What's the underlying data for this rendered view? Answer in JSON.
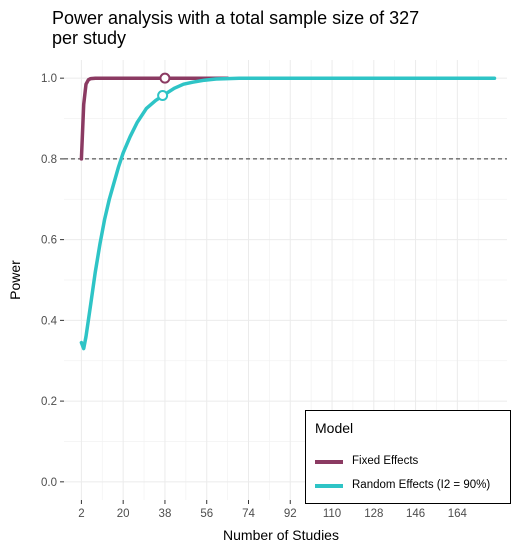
{
  "chart_data": {
    "type": "line",
    "title": [
      "Power analysis with a total sample size of 327",
      "per study"
    ],
    "xlabel": "Number of Studies",
    "ylabel": "Power",
    "xlim": [
      2,
      180
    ],
    "ylim": [
      0,
      1.0
    ],
    "x_ticks": [
      2,
      20,
      38,
      56,
      74,
      92,
      110,
      128,
      146,
      164
    ],
    "y_ticks": [
      0.0,
      0.2,
      0.4,
      0.6,
      0.8,
      1.0
    ],
    "y_tick_labels": [
      "0.0",
      "0.2",
      "0.4",
      "0.6",
      "0.8",
      "1.0"
    ],
    "reference_line": {
      "y": 0.8,
      "style": "dashed"
    },
    "grid": true,
    "legend": {
      "title": "Model",
      "placement": "bottom-right"
    },
    "series": [
      {
        "name": "Fixed Effects",
        "color": "#8b3a62",
        "x": [
          2,
          3,
          4,
          5,
          6,
          8,
          10,
          15,
          20,
          30,
          40,
          50,
          60,
          65
        ],
        "values": [
          0.8,
          0.935,
          0.985,
          0.996,
          0.999,
          1.0,
          1.0,
          1.0,
          1.0,
          1.0,
          1.0,
          1.0,
          1.0,
          1.0
        ],
        "marker": {
          "x": 38,
          "y": 1.0
        }
      },
      {
        "name": "Random Effects (I2 = 90%)",
        "color": "#2ec4c6",
        "x": [
          2,
          3,
          4,
          6,
          8,
          10,
          12,
          14,
          16,
          18,
          20,
          23,
          26,
          30,
          34,
          38,
          42,
          46,
          50,
          55,
          60,
          70,
          80,
          100,
          120,
          150,
          180
        ],
        "values": [
          0.345,
          0.33,
          0.36,
          0.44,
          0.52,
          0.59,
          0.65,
          0.7,
          0.74,
          0.78,
          0.815,
          0.855,
          0.89,
          0.925,
          0.945,
          0.96,
          0.975,
          0.985,
          0.99,
          0.995,
          0.998,
          1.0,
          1.0,
          1.0,
          1.0,
          1.0,
          1.0
        ],
        "marker": {
          "x": 37,
          "y": 0.957
        }
      }
    ]
  }
}
